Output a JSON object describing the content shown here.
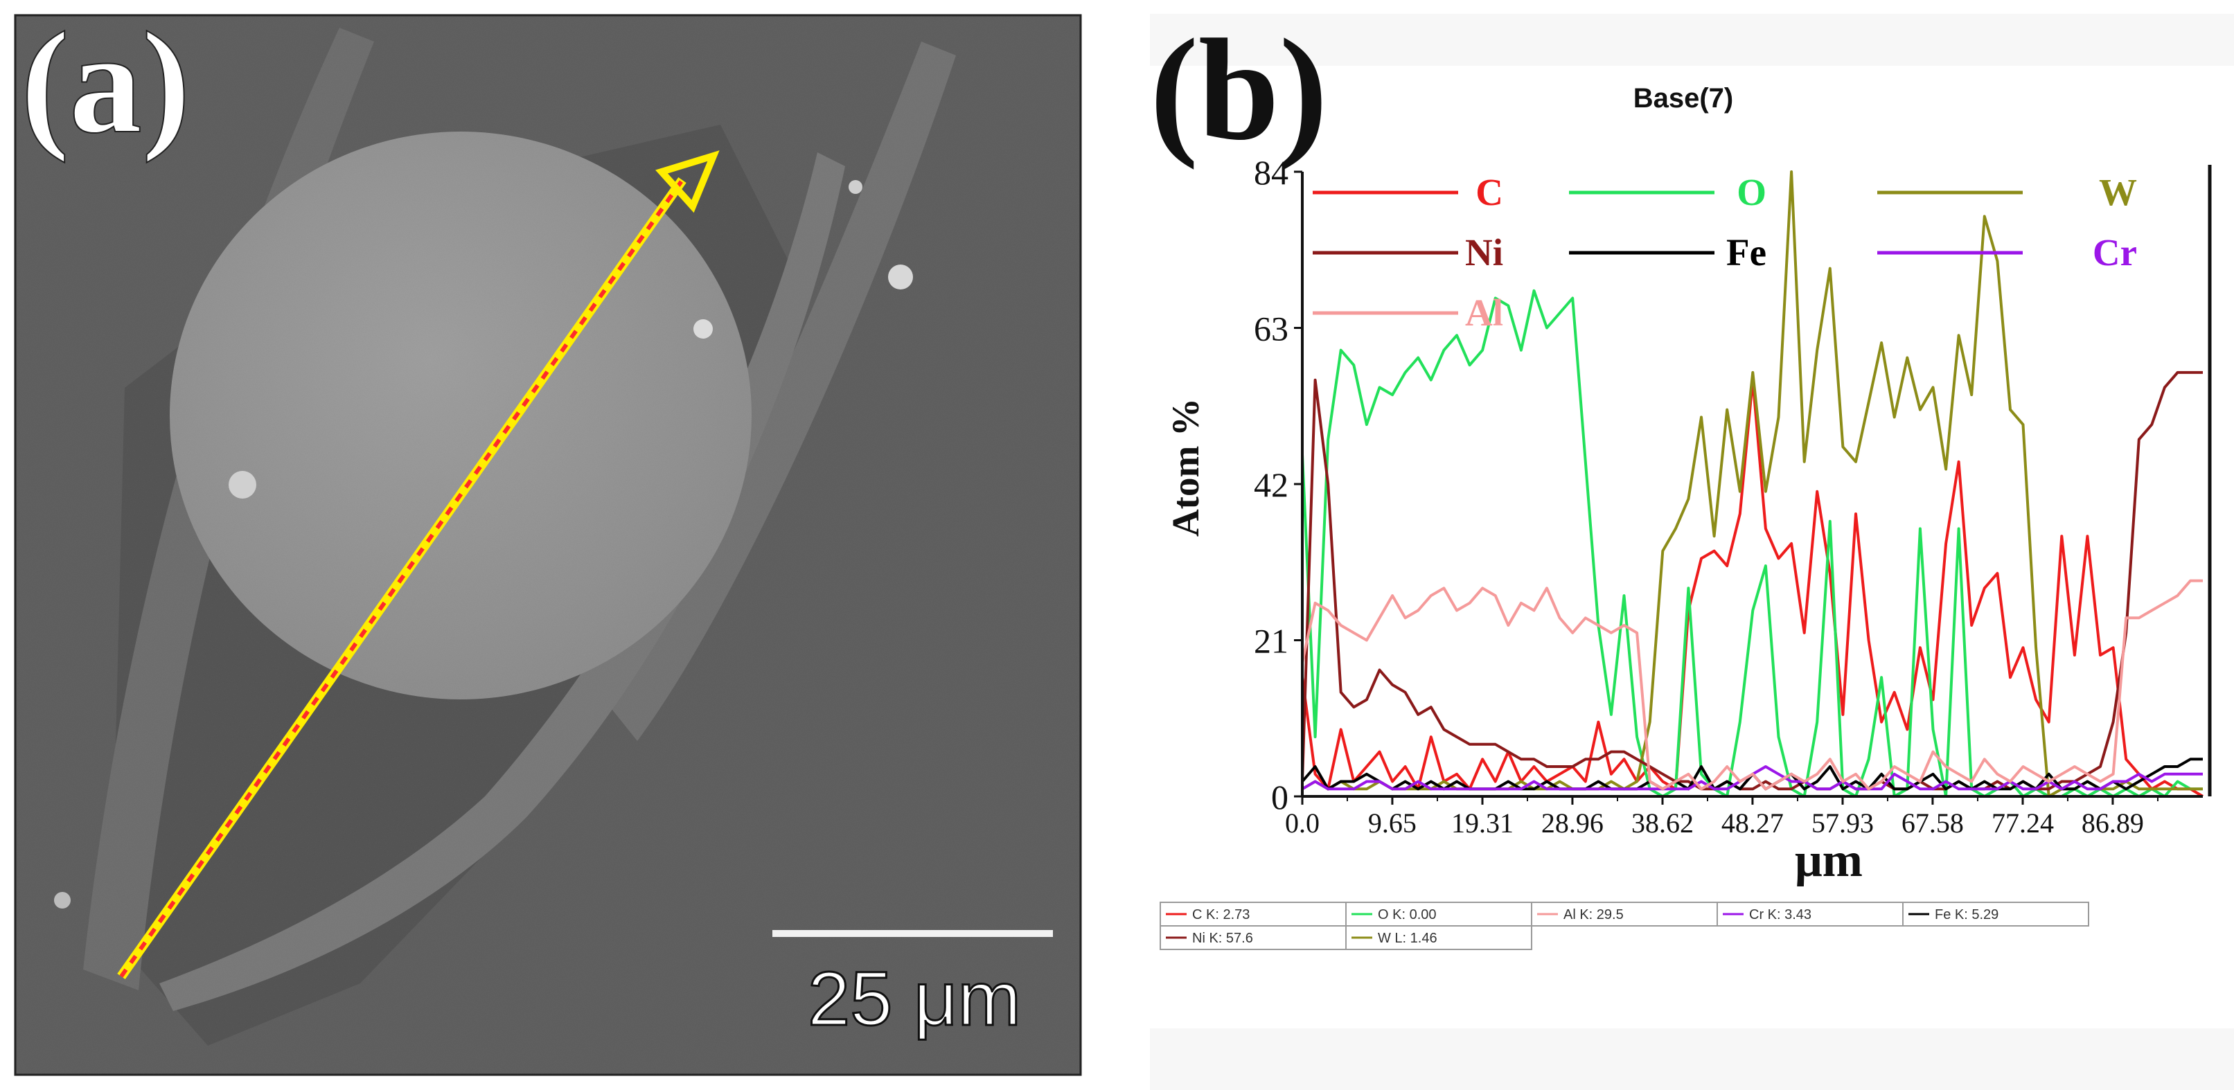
{
  "panel_a": {
    "label": "(a)",
    "scale_bar_text": "25 μm",
    "colors": {
      "line": "#ffee00",
      "line_dash": "#ff2a2a",
      "background": "#3a3a3a",
      "particle": "#b4b4b4"
    }
  },
  "panel_b": {
    "label": "(b)",
    "chart_data": {
      "type": "line",
      "title": "Base(7)",
      "xlabel": "μm",
      "ylabel": "Atom %",
      "xlim": [
        0,
        96.55
      ],
      "ylim": [
        0,
        84
      ],
      "x_ticks": [
        0.0,
        9.65,
        19.31,
        28.96,
        38.62,
        48.27,
        57.93,
        67.58,
        77.24,
        86.89
      ],
      "x_tick_labels": [
        "0.0",
        "9.65",
        "19.31",
        "28.96",
        "38.62",
        "48.27",
        "57.93",
        "67.58",
        "77.24",
        "86.89"
      ],
      "y_ticks": [
        0,
        21,
        42,
        63,
        84
      ],
      "y_tick_labels": [
        "0",
        "21",
        "42",
        "63",
        "84"
      ],
      "legend": [
        {
          "name": "C",
          "color": "#ee1c1c"
        },
        {
          "name": "O",
          "color": "#22e05a"
        },
        {
          "name": "W",
          "color": "#8c8c18"
        },
        {
          "name": "Ni",
          "color": "#8b1a1a"
        },
        {
          "name": "Fe",
          "color": "#000000"
        },
        {
          "name": "Cr",
          "color": "#9b16e8"
        },
        {
          "name": "Al",
          "color": "#f59a9a"
        }
      ],
      "x": [
        0,
        1.38,
        2.76,
        4.14,
        5.52,
        6.9,
        8.28,
        9.66,
        11.04,
        12.42,
        13.8,
        15.18,
        16.56,
        17.94,
        19.32,
        20.7,
        22.08,
        23.46,
        24.84,
        26.22,
        27.6,
        28.98,
        30.36,
        31.74,
        33.12,
        34.5,
        35.88,
        37.26,
        38.64,
        40.02,
        41.4,
        42.78,
        44.16,
        45.54,
        46.92,
        48.3,
        49.68,
        51.06,
        52.44,
        53.82,
        55.2,
        56.58,
        57.96,
        59.34,
        60.72,
        62.1,
        63.48,
        64.86,
        66.24,
        67.62,
        69.0,
        70.38,
        71.76,
        73.14,
        74.52,
        75.9,
        77.28,
        78.66,
        80.04,
        81.42,
        82.8,
        84.18,
        85.56,
        86.94,
        88.32,
        89.7,
        91.08,
        92.46,
        93.84,
        95.22,
        96.55
      ],
      "series": [
        {
          "name": "C",
          "color": "#ee1c1c",
          "values": [
            16,
            3,
            1,
            9,
            2,
            4,
            6,
            2,
            4,
            1,
            8,
            2,
            3,
            1,
            5,
            2,
            6,
            2,
            4,
            2,
            3,
            4,
            2,
            10,
            3,
            5,
            2,
            4,
            2,
            1,
            25,
            32,
            33,
            31,
            38,
            56,
            36,
            32,
            34,
            22,
            41,
            30,
            11,
            38,
            21,
            10,
            14,
            9,
            20,
            13,
            34,
            45,
            23,
            28,
            30,
            16,
            20,
            13,
            10,
            35,
            19,
            35,
            19,
            20,
            5,
            3,
            1,
            2,
            1,
            1,
            0
          ]
        },
        {
          "name": "O",
          "color": "#22e05a",
          "values": [
            46,
            8,
            48,
            60,
            58,
            50,
            55,
            54,
            57,
            59,
            56,
            60,
            62,
            58,
            60,
            67,
            66,
            60,
            68,
            63,
            65,
            67,
            45,
            23,
            11,
            27,
            8,
            1,
            0,
            1,
            28,
            3,
            1,
            0,
            10,
            25,
            31,
            8,
            1,
            0,
            10,
            37,
            1,
            0,
            5,
            16,
            0,
            1,
            36,
            9,
            0,
            36,
            1,
            0,
            1,
            2,
            0,
            1,
            0,
            0,
            1,
            0,
            1,
            0,
            1,
            0,
            1,
            0,
            2,
            1,
            1
          ]
        },
        {
          "name": "W",
          "color": "#8c8c18",
          "values": [
            1,
            2,
            1,
            2,
            1,
            1,
            2,
            1,
            1,
            1,
            1,
            2,
            1,
            1,
            1,
            1,
            1,
            2,
            1,
            1,
            2,
            1,
            1,
            1,
            2,
            1,
            2,
            10,
            33,
            36,
            40,
            51,
            35,
            52,
            41,
            57,
            41,
            51,
            84,
            45,
            60,
            71,
            47,
            45,
            53,
            61,
            51,
            59,
            52,
            55,
            44,
            62,
            54,
            78,
            72,
            52,
            50,
            20,
            0,
            1,
            1,
            2,
            1,
            1,
            2,
            1,
            1,
            1,
            1,
            1,
            1
          ]
        },
        {
          "name": "Ni",
          "color": "#8b1a1a",
          "values": [
            2,
            56,
            42,
            14,
            12,
            13,
            17,
            15,
            14,
            11,
            12,
            9,
            8,
            7,
            7,
            7,
            6,
            5,
            5,
            4,
            4,
            4,
            5,
            5,
            6,
            6,
            5,
            4,
            3,
            2,
            2,
            1,
            1,
            2,
            1,
            1,
            2,
            1,
            1,
            2,
            1,
            1,
            2,
            1,
            1,
            2,
            1,
            1,
            2,
            1,
            1,
            2,
            1,
            1,
            2,
            1,
            2,
            1,
            1,
            2,
            2,
            3,
            4,
            10,
            22,
            48,
            50,
            55,
            57,
            57,
            57
          ]
        },
        {
          "name": "Fe",
          "color": "#000000",
          "values": [
            2,
            4,
            1,
            2,
            2,
            3,
            2,
            1,
            2,
            1,
            2,
            1,
            2,
            1,
            1,
            1,
            2,
            1,
            1,
            2,
            1,
            1,
            1,
            2,
            1,
            1,
            1,
            2,
            1,
            2,
            1,
            4,
            1,
            2,
            1,
            3,
            1,
            2,
            3,
            1,
            2,
            4,
            1,
            2,
            1,
            3,
            1,
            1,
            2,
            3,
            1,
            2,
            1,
            2,
            1,
            1,
            2,
            1,
            3,
            1,
            1,
            2,
            1,
            2,
            1,
            2,
            3,
            4,
            4,
            5,
            5
          ]
        },
        {
          "name": "Cr",
          "color": "#9b16e8",
          "values": [
            1,
            2,
            1,
            1,
            1,
            2,
            2,
            1,
            1,
            2,
            1,
            1,
            1,
            1,
            1,
            1,
            1,
            1,
            2,
            1,
            1,
            1,
            1,
            1,
            1,
            1,
            1,
            1,
            1,
            1,
            1,
            2,
            1,
            1,
            2,
            3,
            4,
            3,
            2,
            2,
            1,
            1,
            2,
            1,
            1,
            1,
            3,
            2,
            1,
            1,
            2,
            1,
            1,
            1,
            1,
            2,
            1,
            1,
            2,
            1,
            2,
            1,
            1,
            2,
            2,
            3,
            2,
            3,
            3,
            3,
            3
          ]
        },
        {
          "name": "Al",
          "color": "#f59a9a",
          "values": [
            18,
            26,
            25,
            23,
            22,
            21,
            24,
            27,
            24,
            25,
            27,
            28,
            25,
            26,
            28,
            27,
            23,
            26,
            25,
            28,
            24,
            22,
            24,
            23,
            22,
            23,
            22,
            2,
            1,
            2,
            3,
            1,
            2,
            4,
            2,
            3,
            1,
            2,
            3,
            2,
            3,
            5,
            2,
            3,
            1,
            2,
            4,
            3,
            2,
            6,
            4,
            3,
            2,
            5,
            3,
            2,
            4,
            3,
            2,
            3,
            4,
            3,
            2,
            3,
            24,
            24,
            25,
            26,
            27,
            29,
            29
          ]
        }
      ],
      "readout": [
        {
          "text": "C K: 2.73",
          "color": "#ee1c1c"
        },
        {
          "text": "O K: 0.00",
          "color": "#22e05a"
        },
        {
          "text": "Al K: 29.5",
          "color": "#f59a9a"
        },
        {
          "text": "Cr K: 3.43",
          "color": "#9b16e8"
        },
        {
          "text": "Fe K: 5.29",
          "color": "#000000"
        },
        {
          "text": "Ni K: 57.6",
          "color": "#8b1a1a"
        },
        {
          "text": "W L: 1.46",
          "color": "#8c8c18"
        }
      ]
    }
  }
}
